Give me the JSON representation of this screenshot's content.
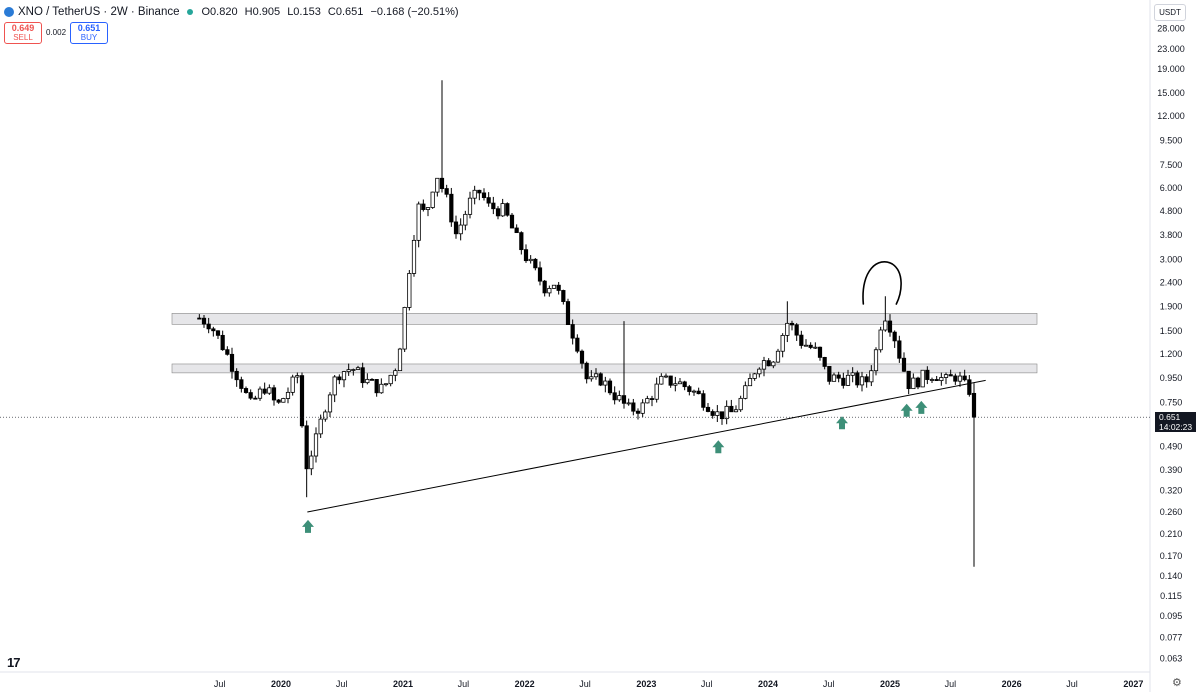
{
  "header": {
    "title": "XNO / TetherUS · 2W · Binance",
    "ohlc": [
      "O0.820",
      "H0.905",
      "L0.153",
      "C0.651",
      "−0.168 (−20.51%)"
    ]
  },
  "trade": {
    "sell_price": "0.649",
    "sell_label": "SELL",
    "spread": "0.002",
    "buy_price": "0.651",
    "buy_label": "BUY"
  },
  "currency": "USDT",
  "last_price": {
    "value": "0.651",
    "countdown": "14:02:23"
  },
  "icons": {
    "logo": "tradingview-logo-icon",
    "settings": "gear-icon"
  },
  "colors": {
    "bull": "#ffffff",
    "bear": "#000000",
    "arrow": "#3d8f78",
    "zone": "#e6e6e9",
    "tag": "#131722"
  },
  "chart_data": {
    "type": "candlestick",
    "scale": "log",
    "y_ticks": [
      "28.000",
      "23.000",
      "19.000",
      "15.000",
      "12.000",
      "9.500",
      "7.500",
      "6.000",
      "4.800",
      "3.800",
      "3.000",
      "2.400",
      "1.900",
      "1.500",
      "1.200",
      "0.950",
      "0.750",
      "0.490",
      "0.390",
      "0.320",
      "0.260",
      "0.210",
      "0.170",
      "0.140",
      "0.115",
      "0.095",
      "0.077",
      "0.063"
    ],
    "x_ticks": [
      "Jul",
      "2020",
      "Jul",
      "2021",
      "Jul",
      "2022",
      "Jul",
      "2023",
      "Jul",
      "2024",
      "Jul",
      "2025",
      "Jul",
      "2026",
      "Jul",
      "2027"
    ],
    "x_tick_dates": [
      "2019-07-01",
      "2020-01-01",
      "2020-07-01",
      "2021-01-01",
      "2021-07-01",
      "2022-01-01",
      "2022-07-01",
      "2023-01-01",
      "2023-07-01",
      "2024-01-01",
      "2024-07-01",
      "2025-01-01",
      "2025-07-01",
      "2026-01-01",
      "2026-07-01",
      "2027-01-01"
    ],
    "series_anchors": [
      {
        "date": "2019-05-01",
        "price": 1.7
      },
      {
        "date": "2019-06-01",
        "price": 1.62
      },
      {
        "date": "2019-07-10",
        "price": 1.3
      },
      {
        "date": "2019-09-01",
        "price": 0.92
      },
      {
        "date": "2019-10-01",
        "price": 0.73
      },
      {
        "date": "2019-11-15",
        "price": 0.88
      },
      {
        "date": "2019-12-20",
        "price": 0.72
      },
      {
        "date": "2020-01-25",
        "price": 0.85
      },
      {
        "date": "2020-02-20",
        "price": 0.98
      },
      {
        "date": "2020-03-15",
        "price": 0.4
      },
      {
        "date": "2020-04-15",
        "price": 0.52
      },
      {
        "date": "2020-05-20",
        "price": 0.8
      },
      {
        "date": "2020-06-20",
        "price": 1.0
      },
      {
        "date": "2020-08-01",
        "price": 1.05
      },
      {
        "date": "2020-09-15",
        "price": 0.92
      },
      {
        "date": "2020-11-01",
        "price": 0.85
      },
      {
        "date": "2020-12-15",
        "price": 1.1
      },
      {
        "date": "2021-01-05",
        "price": 1.8
      },
      {
        "date": "2021-01-25",
        "price": 3.2
      },
      {
        "date": "2021-02-15",
        "price": 5.0
      },
      {
        "date": "2021-03-10",
        "price": 4.6
      },
      {
        "date": "2021-04-10",
        "price": 7.0
      },
      {
        "date": "2021-05-15",
        "price": 5.2
      },
      {
        "date": "2021-06-10",
        "price": 3.8
      },
      {
        "date": "2021-07-20",
        "price": 5.2
      },
      {
        "date": "2021-08-20",
        "price": 5.8
      },
      {
        "date": "2021-09-15",
        "price": 5.0
      },
      {
        "date": "2021-11-01",
        "price": 4.8
      },
      {
        "date": "2021-12-10",
        "price": 3.6
      },
      {
        "date": "2022-01-15",
        "price": 2.9
      },
      {
        "date": "2022-03-01",
        "price": 2.3
      },
      {
        "date": "2022-04-01",
        "price": 2.4
      },
      {
        "date": "2022-05-15",
        "price": 1.6
      },
      {
        "date": "2022-06-10",
        "price": 1.3
      },
      {
        "date": "2022-07-10",
        "price": 0.9
      },
      {
        "date": "2022-08-15",
        "price": 0.95
      },
      {
        "date": "2022-10-01",
        "price": 0.8
      },
      {
        "date": "2022-11-10",
        "price": 0.7
      },
      {
        "date": "2022-12-20",
        "price": 0.72
      },
      {
        "date": "2023-02-15",
        "price": 0.92
      },
      {
        "date": "2023-04-01",
        "price": 0.92
      },
      {
        "date": "2023-05-15",
        "price": 0.85
      },
      {
        "date": "2023-07-01",
        "price": 0.75
      },
      {
        "date": "2023-08-01",
        "price": 0.67
      },
      {
        "date": "2023-09-15",
        "price": 0.68
      },
      {
        "date": "2023-10-20",
        "price": 0.8
      },
      {
        "date": "2023-12-01",
        "price": 1.1
      },
      {
        "date": "2024-01-15",
        "price": 1.15
      },
      {
        "date": "2024-03-01",
        "price": 1.65
      },
      {
        "date": "2024-04-10",
        "price": 1.35
      },
      {
        "date": "2024-05-20",
        "price": 1.25
      },
      {
        "date": "2024-07-01",
        "price": 0.95
      },
      {
        "date": "2024-09-01",
        "price": 0.95
      },
      {
        "date": "2024-10-20",
        "price": 0.9
      },
      {
        "date": "2024-11-25",
        "price": 1.3
      },
      {
        "date": "2024-12-10",
        "price": 1.85
      },
      {
        "date": "2025-01-10",
        "price": 1.5
      },
      {
        "date": "2025-02-05",
        "price": 1.1
      },
      {
        "date": "2025-03-01",
        "price": 0.88
      },
      {
        "date": "2025-04-01",
        "price": 0.95
      },
      {
        "date": "2025-05-15",
        "price": 1.0
      },
      {
        "date": "2025-06-15",
        "price": 0.92
      },
      {
        "date": "2025-07-20",
        "price": 0.98
      },
      {
        "date": "2025-08-20",
        "price": 0.85
      }
    ],
    "last_candle": {
      "open": 0.82,
      "high": 0.905,
      "low": 0.153,
      "close": 0.651
    },
    "last_candle_date": "2025-09-10",
    "zones": [
      {
        "low": 1.6,
        "high": 1.78
      },
      {
        "low": 1.0,
        "high": 1.09
      }
    ],
    "trendline": [
      {
        "date": "2020-03-20",
        "price": 0.26
      },
      {
        "date": "2025-10-15",
        "price": 0.93
      }
    ],
    "support_arrows": [
      "2020-03-22",
      "2023-08-05",
      "2024-08-10",
      "2025-02-20",
      "2025-04-05"
    ],
    "annotation": {
      "type": "hand-drawn circle",
      "date": "2024-12-15"
    }
  }
}
